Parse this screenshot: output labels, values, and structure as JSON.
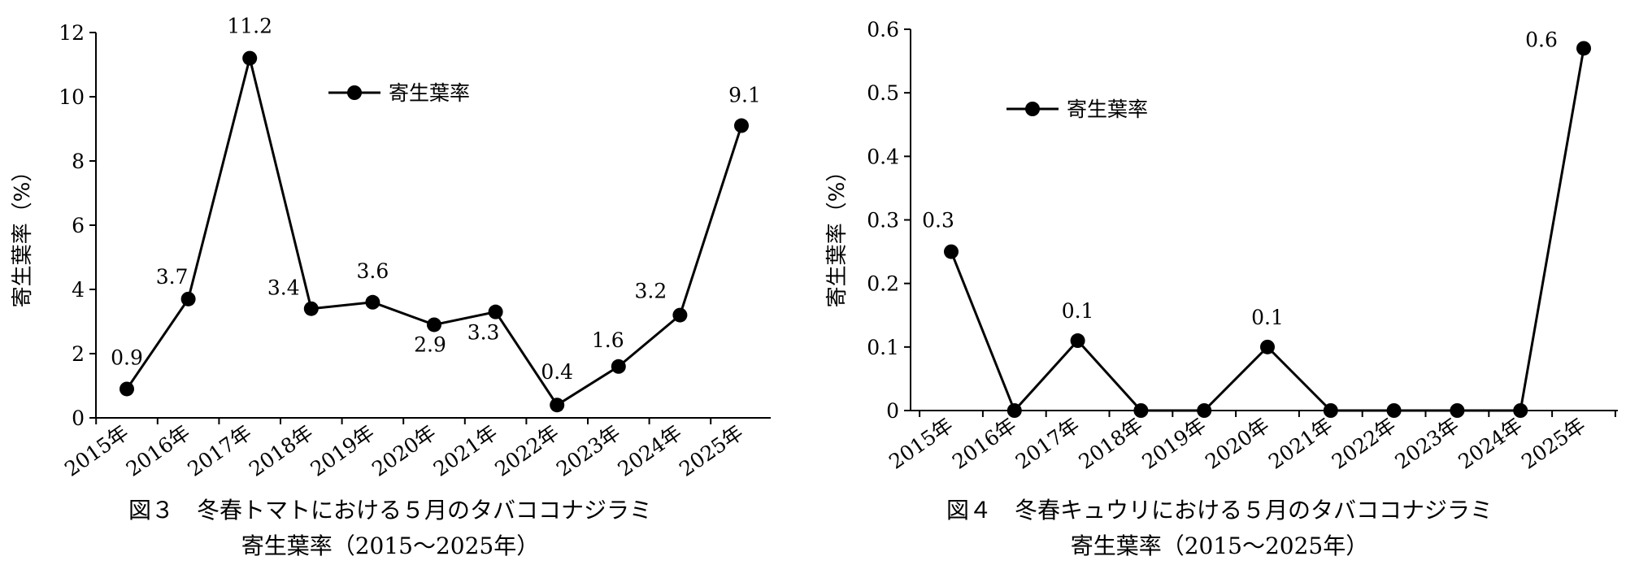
{
  "chart_data": [
    {
      "type": "line",
      "categories": [
        "2015年",
        "2016年",
        "2017年",
        "2018年",
        "2019年",
        "2020年",
        "2021年",
        "2022年",
        "2023年",
        "2024年",
        "2025年"
      ],
      "series": [
        {
          "name": "寄生葉率",
          "values": [
            0.9,
            3.7,
            11.2,
            3.4,
            3.6,
            2.9,
            3.3,
            0.4,
            1.6,
            3.2,
            9.1
          ]
        }
      ],
      "data_labels": [
        "0.9",
        "3.7",
        "11.2",
        "3.4",
        "3.6",
        "2.9",
        "3.3",
        "0.4",
        "1.6",
        "3.2",
        "9.1"
      ],
      "ylabel": "寄生葉率（%）",
      "ylim": [
        0,
        12
      ],
      "yticks": [
        0,
        2,
        4,
        6,
        8,
        10,
        12
      ],
      "ytick_labels": [
        "0",
        "2",
        "4",
        "6",
        "8",
        "10",
        "12"
      ],
      "grid": false,
      "legend": "top-center",
      "caption_line1": "図３　冬春トマトにおける５月のタバココナジラミ",
      "caption_line2": "寄生葉率（2015〜2025年）"
    },
    {
      "type": "line",
      "categories": [
        "2015年",
        "2016年",
        "2017年",
        "2018年",
        "2019年",
        "2020年",
        "2021年",
        "2022年",
        "2023年",
        "2024年",
        "2025年"
      ],
      "series": [
        {
          "name": "寄生葉率",
          "values": [
            0.25,
            0,
            0.11,
            0,
            0,
            0.1,
            0,
            0,
            0,
            0,
            0.57
          ]
        }
      ],
      "data_labels": [
        "0.3",
        "",
        "0.1",
        "",
        "",
        "0.1",
        "",
        "",
        "",
        "",
        "0.6"
      ],
      "ylabel": "寄生葉率（%）",
      "ylim": [
        0,
        0.6
      ],
      "yticks": [
        0,
        0.1,
        0.2,
        0.3,
        0.4,
        0.5,
        0.6
      ],
      "ytick_labels": [
        "0",
        "0.1",
        "0.2",
        "0.3",
        "0.4",
        "0.5",
        "0.6"
      ],
      "grid": false,
      "legend": "top-left",
      "caption_line1": "図４　冬春キュウリにおける５月のタバココナジラミ",
      "caption_line2": "寄生葉率（2015〜2025年）"
    }
  ]
}
